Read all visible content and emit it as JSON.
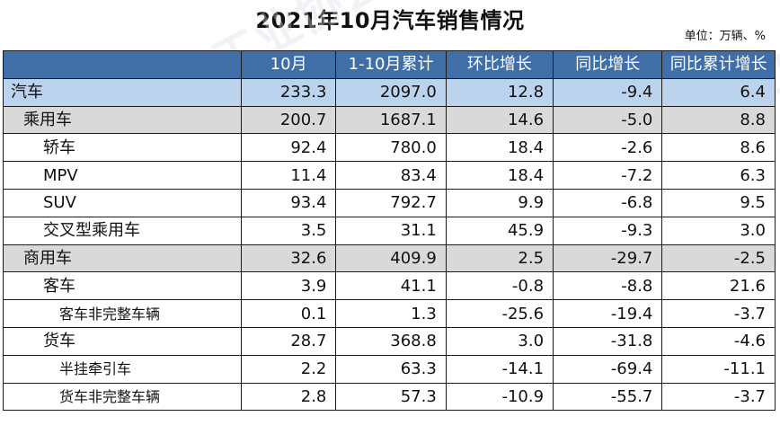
{
  "title": "2021年10月汽车销售情况",
  "unit": "单位：万辆、%",
  "watermark": "中国汽车工业协会",
  "columns": [
    "",
    "10月",
    "1-10月累计",
    "环比增长",
    "同比增长",
    "同比累计增长"
  ],
  "rows": [
    {
      "level": 0,
      "label": "汽车",
      "values": [
        "233.3",
        "2097.0",
        "12.8",
        "-9.4",
        "6.4"
      ]
    },
    {
      "level": 1,
      "label": "乘用车",
      "values": [
        "200.7",
        "1687.1",
        "14.6",
        "-5.0",
        "8.8"
      ]
    },
    {
      "level": 2,
      "label": "轿车",
      "values": [
        "92.4",
        "780.0",
        "18.4",
        "-2.6",
        "8.6"
      ]
    },
    {
      "level": 2,
      "label": "MPV",
      "values": [
        "11.4",
        "83.4",
        "18.4",
        "-7.2",
        "6.3"
      ]
    },
    {
      "level": 2,
      "label": "SUV",
      "values": [
        "93.4",
        "792.7",
        "9.9",
        "-6.8",
        "9.5"
      ]
    },
    {
      "level": 2,
      "label": "交叉型乘用车",
      "values": [
        "3.5",
        "31.1",
        "45.9",
        "-9.3",
        "3.0"
      ]
    },
    {
      "level": 1,
      "label": "商用车",
      "values": [
        "32.6",
        "409.9",
        "2.5",
        "-29.7",
        "-2.5"
      ]
    },
    {
      "level": 2,
      "label": "客车",
      "values": [
        "3.9",
        "41.1",
        "-0.8",
        "-8.8",
        "21.6"
      ]
    },
    {
      "level": 3,
      "label": "客车非完整车辆",
      "values": [
        "0.1",
        "1.3",
        "-25.6",
        "-19.4",
        "-3.7"
      ]
    },
    {
      "level": 2,
      "label": "货车",
      "values": [
        "28.7",
        "368.8",
        "3.0",
        "-31.8",
        "-4.6"
      ]
    },
    {
      "level": 3,
      "label": "半挂牵引车",
      "values": [
        "2.2",
        "63.3",
        "-14.1",
        "-69.4",
        "-11.1"
      ]
    },
    {
      "level": 3,
      "label": "货车非完整车辆",
      "values": [
        "2.8",
        "57.3",
        "-10.9",
        "-55.7",
        "-3.7"
      ]
    }
  ]
}
